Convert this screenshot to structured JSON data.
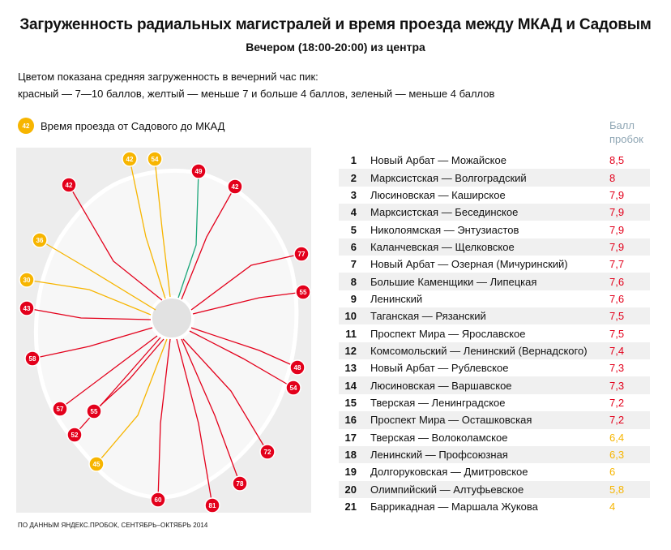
{
  "title": "Загруженность радиальных магистралей и время проезда между МКАД и Садовым",
  "subtitle": "Вечером (18:00-20:00) из центра",
  "description": {
    "line1": "Цветом показана средняя загруженность в вечерний час пик:",
    "line2": "красный — 7—10 баллов, желтый — меньше 7 и больше 4 баллов, зеленый — меньше 4 баллов"
  },
  "legend": {
    "badge": "42",
    "label": "Время проезда от Садового до МКАД"
  },
  "score_header": {
    "line1": "Балл",
    "line2": "пробок"
  },
  "colors": {
    "red": "#e3001b",
    "yellow": "#f7b500",
    "green": "#1ba67a",
    "header": "#8fa6b4"
  },
  "map_badges": [
    {
      "value": "42",
      "color": "red"
    },
    {
      "value": "54",
      "color": "yellow"
    },
    {
      "value": "42",
      "color": "yellow"
    },
    {
      "value": "49",
      "color": "red"
    },
    {
      "value": "42",
      "color": "red"
    },
    {
      "value": "36",
      "color": "yellow"
    },
    {
      "value": "77",
      "color": "red"
    },
    {
      "value": "30",
      "color": "yellow"
    },
    {
      "value": "55",
      "color": "red"
    },
    {
      "value": "43",
      "color": "red"
    },
    {
      "value": "58",
      "color": "red"
    },
    {
      "value": "48",
      "color": "red"
    },
    {
      "value": "54",
      "color": "red"
    },
    {
      "value": "57",
      "color": "red"
    },
    {
      "value": "55",
      "color": "red"
    },
    {
      "value": "52",
      "color": "red"
    },
    {
      "value": "72",
      "color": "red"
    },
    {
      "value": "45",
      "color": "yellow"
    },
    {
      "value": "78",
      "color": "red"
    },
    {
      "value": "60",
      "color": "red"
    },
    {
      "value": "81",
      "color": "red"
    }
  ],
  "rows": [
    {
      "rank": "1",
      "name": "Новый Арбат — Можайское",
      "score": "8,5",
      "color": "red"
    },
    {
      "rank": "2",
      "name": "Марксистская — Волгоградский",
      "score": "8",
      "color": "red"
    },
    {
      "rank": "3",
      "name": "Люсиновская — Каширское",
      "score": "7,9",
      "color": "red"
    },
    {
      "rank": "4",
      "name": "Марксистская — Бесединское",
      "score": "7,9",
      "color": "red"
    },
    {
      "rank": "5",
      "name": "Николоямская — Энтузиастов",
      "score": "7,9",
      "color": "red"
    },
    {
      "rank": "6",
      "name": "Каланчевская — Щелковское",
      "score": "7,9",
      "color": "red"
    },
    {
      "rank": "7",
      "name": "Новый Арбат — Озерная (Мичуринский)",
      "score": "7,7",
      "color": "red"
    },
    {
      "rank": "8",
      "name": "Большие Каменщики — Липецкая",
      "score": "7,6",
      "color": "red"
    },
    {
      "rank": "9",
      "name": "Ленинский",
      "score": "7,6",
      "color": "red"
    },
    {
      "rank": "10",
      "name": "Таганская — Рязанский",
      "score": "7,5",
      "color": "red"
    },
    {
      "rank": "11",
      "name": "Проспект Мира — Ярославское",
      "score": "7,5",
      "color": "red"
    },
    {
      "rank": "12",
      "name": "Комсомольский — Ленинский (Вернадского)",
      "score": "7,4",
      "color": "red"
    },
    {
      "rank": "13",
      "name": "Новый Арбат — Рублевское",
      "score": "7,3",
      "color": "red"
    },
    {
      "rank": "14",
      "name": "Люсиновская — Варшавское",
      "score": "7,3",
      "color": "red"
    },
    {
      "rank": "15",
      "name": "Тверская — Ленинградское",
      "score": "7,2",
      "color": "red"
    },
    {
      "rank": "16",
      "name": "Проспект Мира — Осташковская",
      "score": "7,2",
      "color": "red"
    },
    {
      "rank": "17",
      "name": "Тверская — Волоколамское",
      "score": "6,4",
      "color": "yellow"
    },
    {
      "rank": "18",
      "name": "Ленинский — Профсоюзная",
      "score": "6,3",
      "color": "yellow"
    },
    {
      "rank": "19",
      "name": "Долгоруковская — Дмитровское",
      "score": "6",
      "color": "yellow"
    },
    {
      "rank": "20",
      "name": "Олимпийский — Алтуфьевское",
      "score": "5,8",
      "color": "yellow"
    },
    {
      "rank": "21",
      "name": "Баррикадная — Маршала Жукова",
      "score": "4",
      "color": "yellow"
    }
  ],
  "source": "ПО ДАННЫМ ЯНДЕКС.ПРОБОК, СЕНТЯБРЬ–ОКТЯБРЬ 2014"
}
